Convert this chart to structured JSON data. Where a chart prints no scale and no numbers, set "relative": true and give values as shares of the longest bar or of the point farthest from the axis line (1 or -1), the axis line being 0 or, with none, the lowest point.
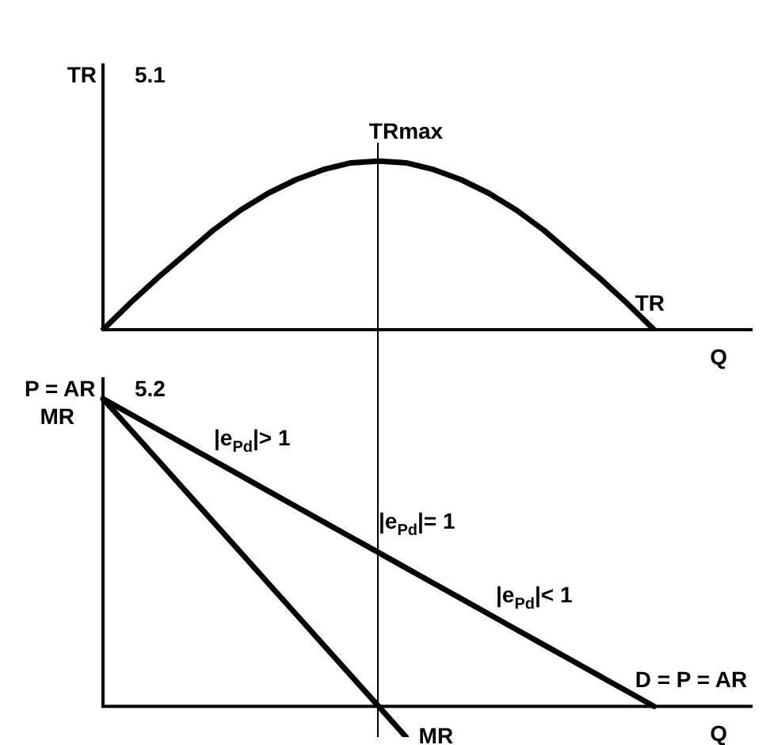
{
  "chart_data": [
    {
      "type": "line",
      "title": "5.1",
      "xlabel": "Q",
      "ylabel": "TR",
      "relative": true,
      "tick_labels": false,
      "legend": false,
      "marker": "none",
      "line_style": "solid",
      "categories": [
        null,
        null,
        null,
        null,
        null,
        null,
        null,
        null,
        null,
        null,
        null,
        null,
        null,
        null,
        null,
        null,
        null,
        null,
        null,
        null,
        null,
        null,
        null,
        null
      ],
      "series": [
        {
          "name": "TR",
          "color": "#000000",
          "values": [
            0,
            0.16,
            0.31,
            0.45,
            0.59,
            0.71,
            0.81,
            0.89,
            0.95,
            0.99,
            1,
            0.99,
            0.95,
            0.89,
            0.81,
            0.71,
            0.59,
            0.45,
            0.31,
            0.16,
            0,
            null,
            null,
            null
          ]
        }
      ],
      "annotations": [
        {
          "text": "TRmax",
          "y": 1
        }
      ]
    },
    {
      "type": "line",
      "title": "5.2",
      "xlabel": "Q",
      "ylabel": "P = AR",
      "relative": true,
      "tick_labels": false,
      "legend": false,
      "marker": "none",
      "line_style": "solid",
      "categories": [
        null,
        null,
        null,
        null,
        null,
        null,
        null,
        null,
        null,
        null,
        null,
        null,
        null,
        null,
        null,
        null,
        null,
        null,
        null,
        null,
        null,
        null,
        null,
        null
      ],
      "series": [
        {
          "name": "D = P = AR",
          "color": "#000000",
          "values": [
            1,
            0.95,
            0.9,
            0.85,
            0.8,
            0.75,
            0.7,
            0.65,
            0.6,
            0.55,
            0.5,
            0.45,
            0.4,
            0.35,
            0.3,
            0.25,
            0.2,
            0.15,
            0.1,
            0.05,
            0,
            null,
            null,
            null
          ]
        },
        {
          "name": "MR",
          "color": "#000000",
          "values": [
            1,
            0.9,
            0.8,
            0.7,
            0.6,
            0.5,
            0.4,
            0.3,
            0.2,
            0.1,
            0,
            -0.1,
            null,
            null,
            null,
            null,
            null,
            null,
            null,
            null,
            null,
            null,
            null,
            null
          ]
        }
      ],
      "annotations": [
        "MR",
        "|e$_{Pd}$|> 1",
        "|e$_{Pd}$|= 1",
        "|e$_{Pd}$|< 1"
      ]
    }
  ]
}
